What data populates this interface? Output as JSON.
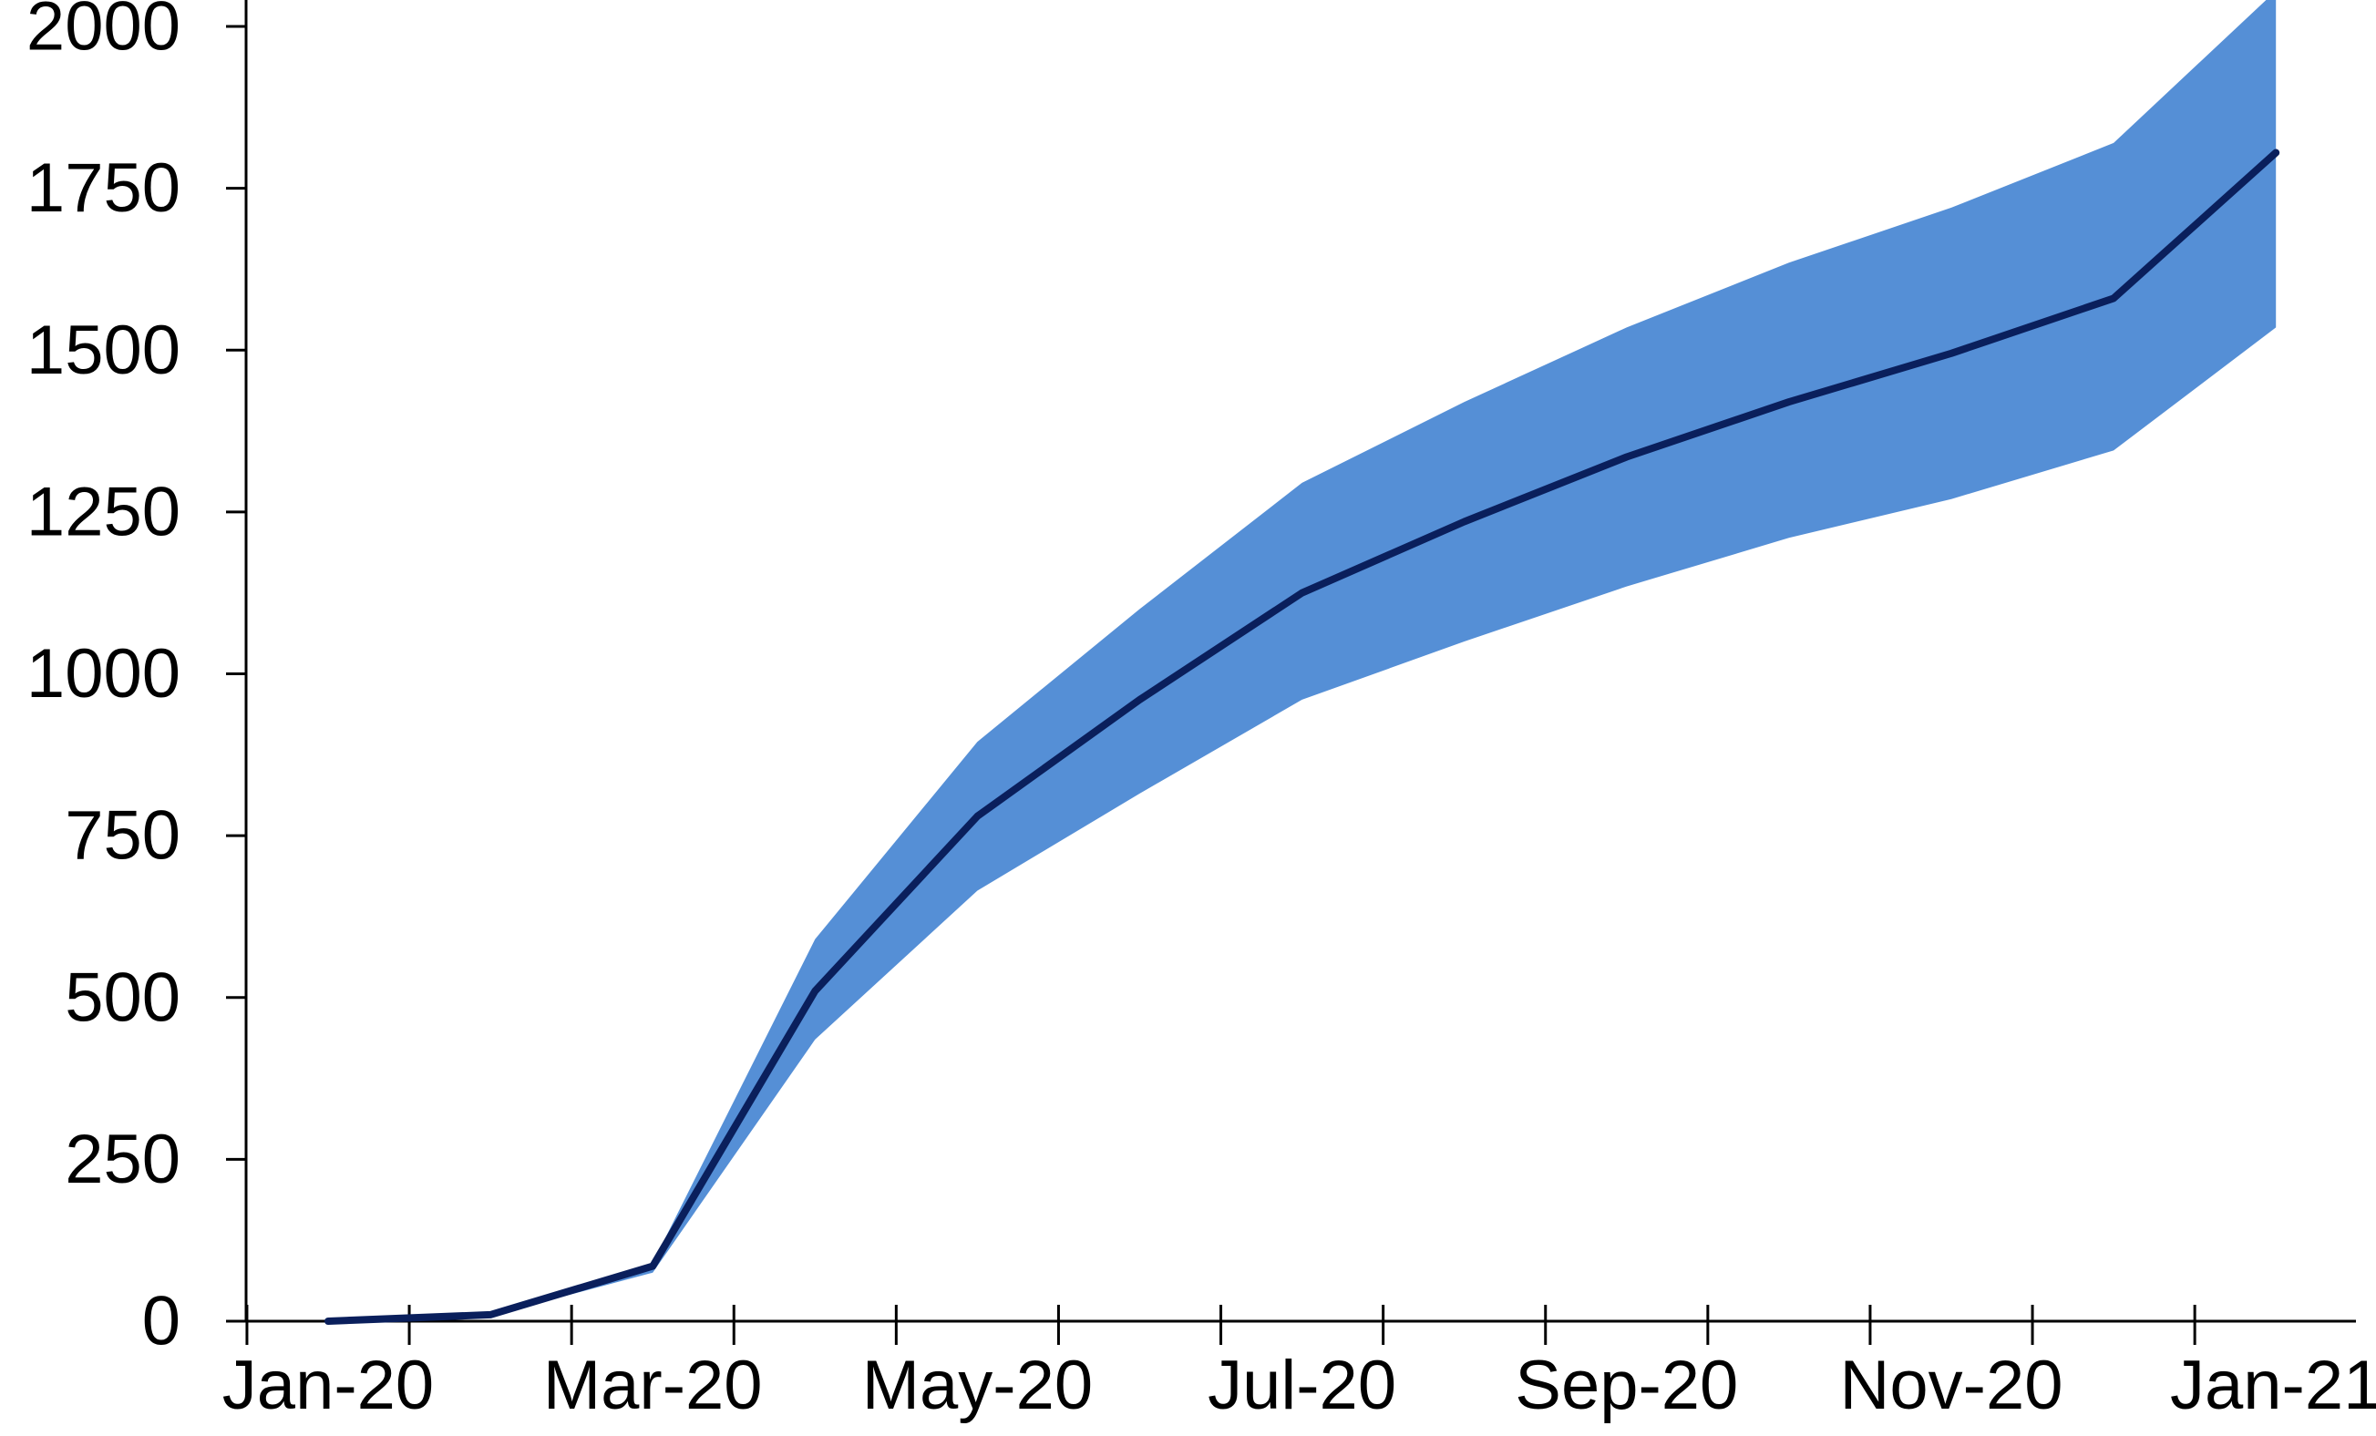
{
  "chart_data": {
    "type": "area",
    "title": "",
    "xlabel": "",
    "ylabel": "",
    "x": [
      "2020-01-15",
      "2020-02-15",
      "2020-03-15",
      "2020-04-15",
      "2020-05-15",
      "2020-06-15",
      "2020-07-15",
      "2020-08-15",
      "2020-09-15",
      "2020-10-15",
      "2020-11-15",
      "2020-12-15",
      "2021-01-15"
    ],
    "series": [
      {
        "role": "central estimate line",
        "color": "#0a1f5c",
        "values": [
          0,
          10,
          85,
          510,
          780,
          960,
          1125,
          1235,
          1335,
          1420,
          1495,
          1580,
          1805
        ]
      },
      {
        "role": "upper band",
        "color": "#558fd6",
        "values": [
          0,
          10,
          90,
          590,
          895,
          1100,
          1295,
          1420,
          1535,
          1635,
          1720,
          1820,
          2055
        ]
      },
      {
        "role": "lower band",
        "color": "#558fd6",
        "values": [
          0,
          8,
          75,
          435,
          665,
          815,
          960,
          1050,
          1135,
          1210,
          1270,
          1345,
          1535
        ]
      }
    ],
    "ylim": [
      0,
      2050
    ],
    "yticks": [
      0,
      250,
      500,
      750,
      1000,
      1250,
      1500,
      1750,
      2000
    ],
    "ytick_labels": [
      "0",
      "250",
      "500",
      "750",
      "1000",
      "1250",
      "1500",
      "1750",
      "2000"
    ],
    "xtick_labels": [
      "Jan-20",
      "Mar-20",
      "May-20",
      "Jul-20",
      "Sep-20",
      "Nov-20",
      "Jan-21"
    ],
    "grid": false,
    "legend": "none"
  }
}
